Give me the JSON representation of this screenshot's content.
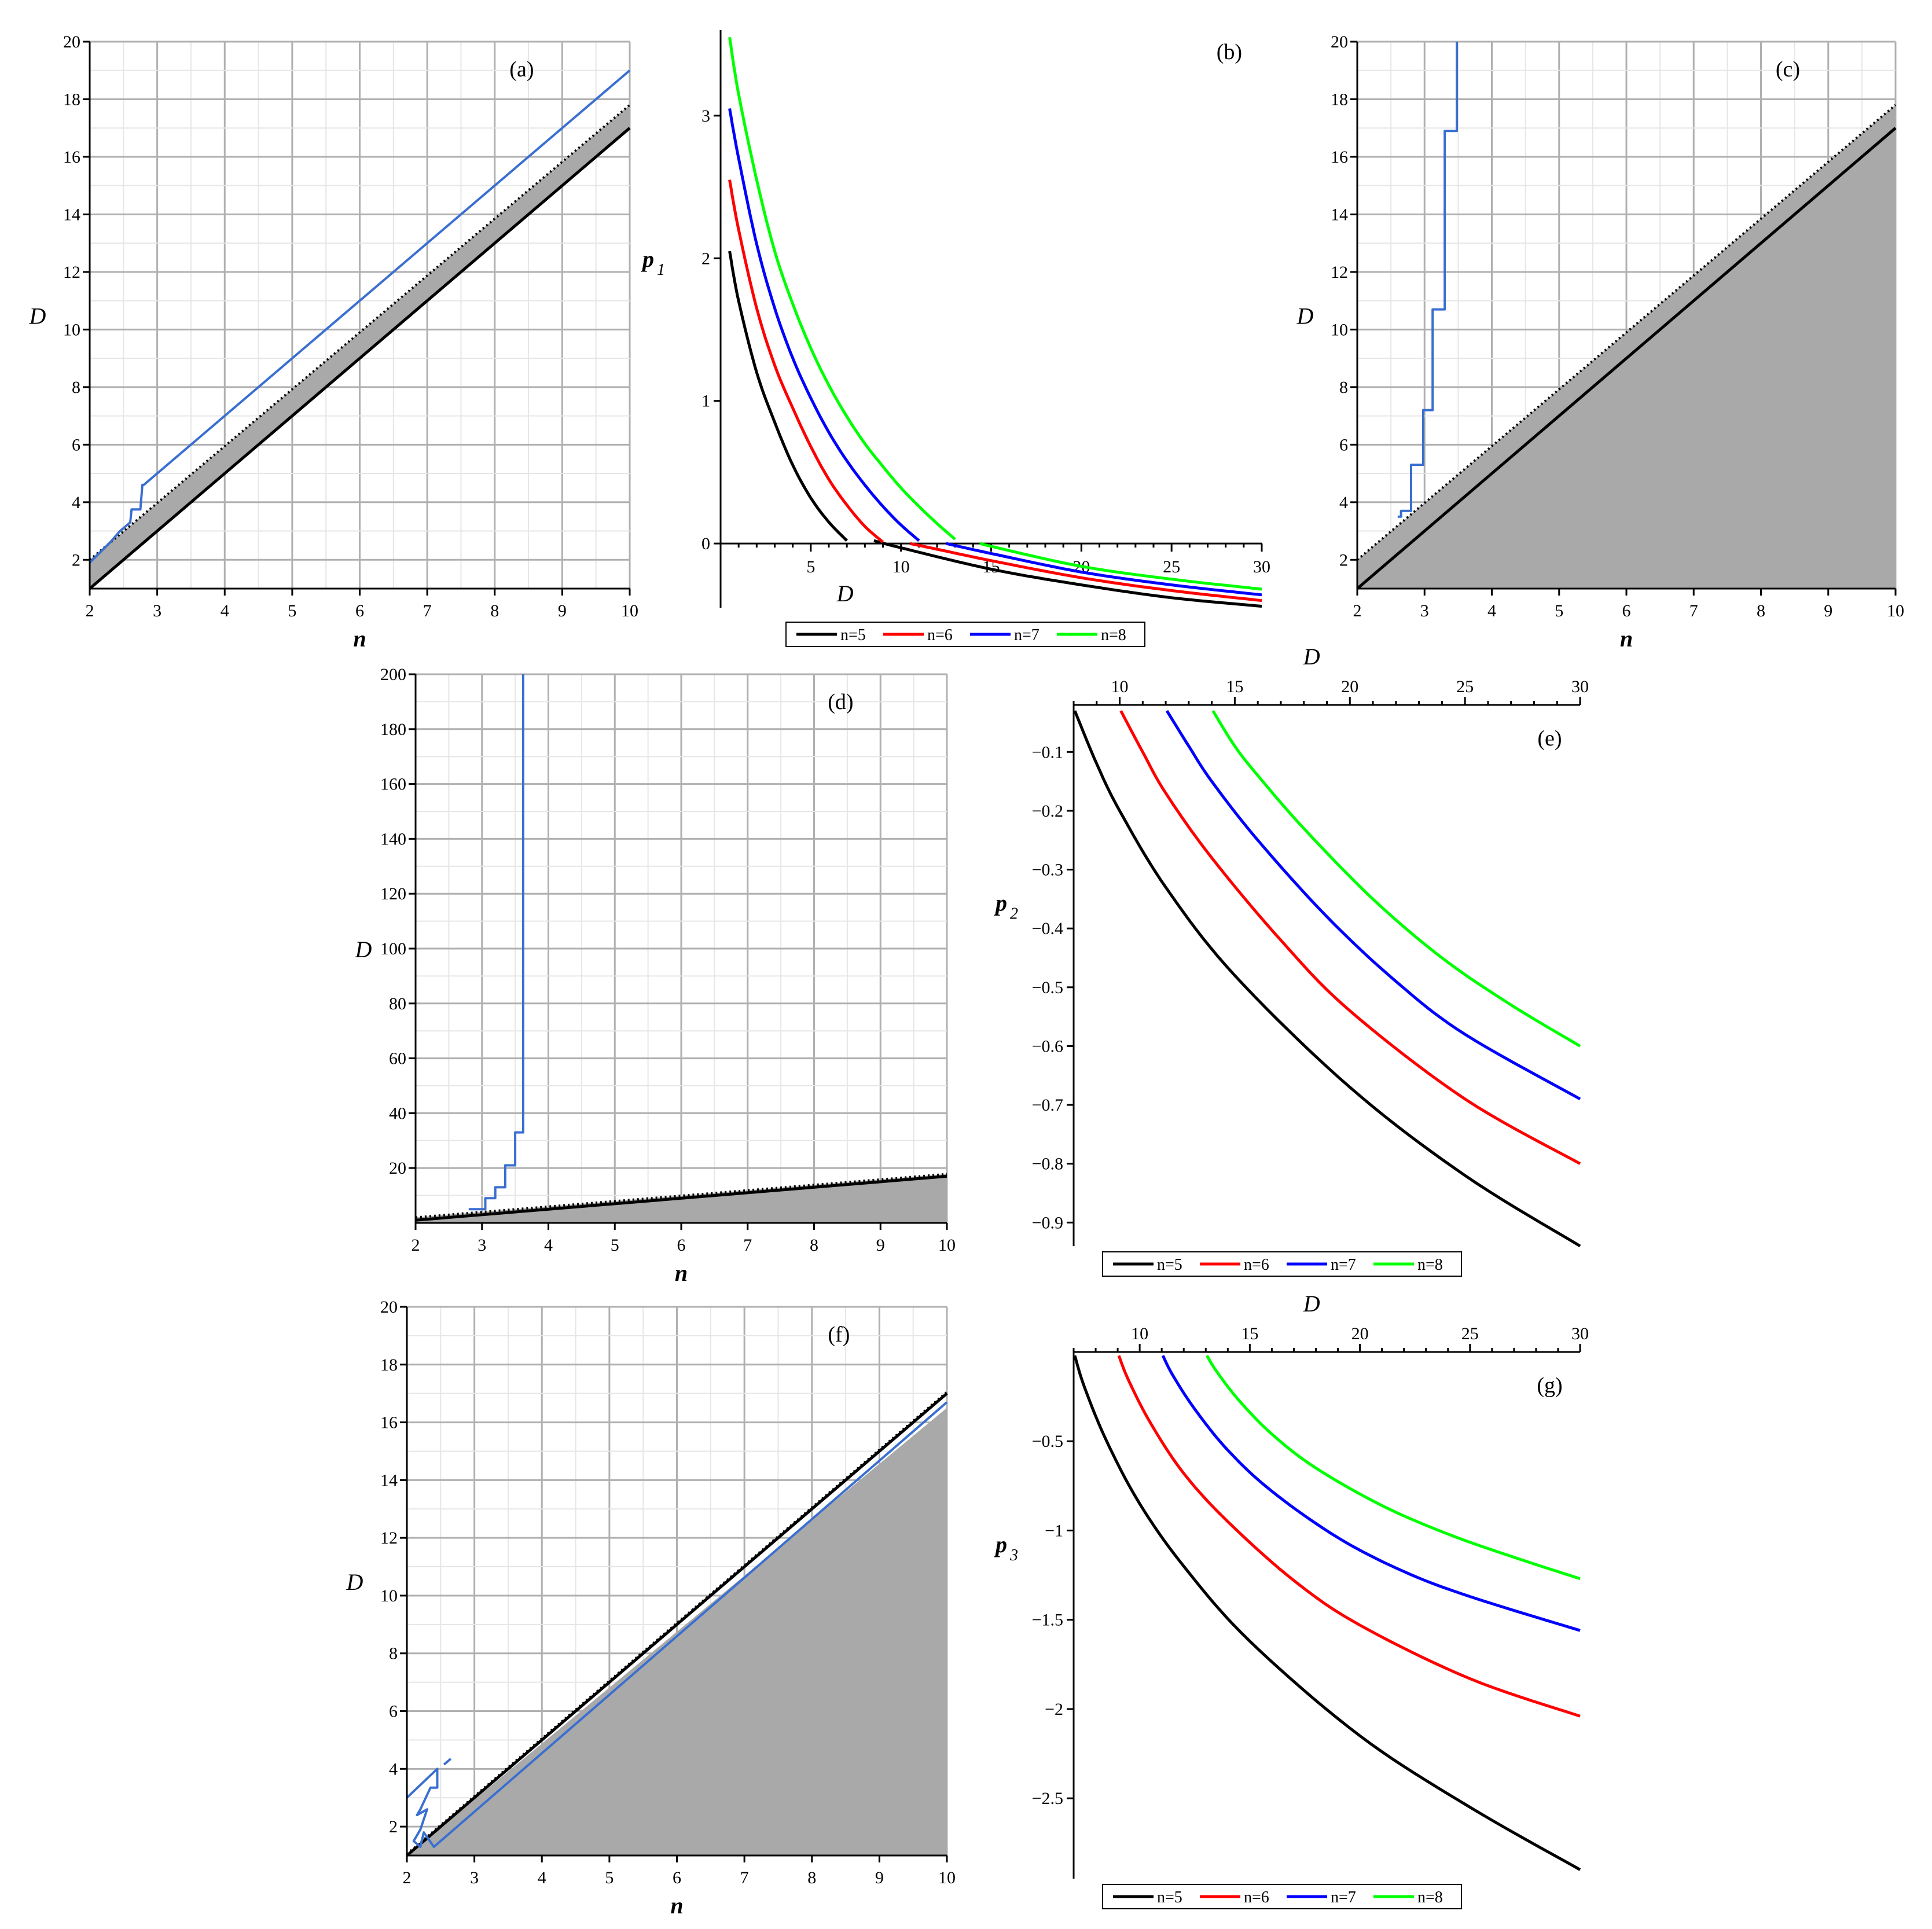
{
  "colors": {
    "black": "#000000",
    "red": "#ff0000",
    "blue": "#0000ff",
    "green": "#00ff00",
    "contour_blue": "#3a6fd0",
    "shade": "#a9a9a9",
    "grid_major": "#b0b0b0",
    "grid_minor": "#e6e6e6"
  },
  "chart_data": [
    {
      "id": "a",
      "type": "region",
      "panel_label": "(a)",
      "xlabel": "n",
      "ylabel": "D",
      "xlim": [
        2,
        10
      ],
      "ylim": [
        1,
        20
      ],
      "xticks": [
        "2",
        "3",
        "4",
        "5",
        "6",
        "7",
        "8",
        "9",
        "10"
      ],
      "yticks": [
        "2",
        "4",
        "6",
        "8",
        "10",
        "12",
        "14",
        "16",
        "18",
        "20"
      ],
      "shaded_region": {
        "lower": {
          "x": [
            2,
            10
          ],
          "y": [
            1,
            17
          ]
        },
        "upper": {
          "x": [
            2,
            10
          ],
          "y": [
            2,
            17.8
          ]
        }
      },
      "solid_line": {
        "x": [
          2,
          10
        ],
        "y": [
          1,
          17
        ]
      },
      "dotted_line": {
        "x": [
          2,
          10
        ],
        "y": [
          2,
          17.8
        ]
      },
      "contour": {
        "x": [
          2,
          2.3,
          2.45,
          2.6,
          2.62,
          2.75,
          2.78,
          2.8,
          10
        ],
        "y": [
          1.9,
          2.6,
          3.0,
          3.3,
          3.75,
          3.75,
          4.6,
          4.6,
          19
        ]
      }
    },
    {
      "id": "b",
      "type": "line",
      "panel_label": "(b)",
      "xlabel": "D",
      "ylabel": "p",
      "ylabel_sub": "1",
      "xlim": [
        0,
        30
      ],
      "ylim": [
        -0.45,
        3.6
      ],
      "xticks": [
        "5",
        "10",
        "15",
        "20",
        "25",
        "30"
      ],
      "yticks": [
        "0",
        "1",
        "2",
        "3"
      ],
      "legend": [
        "n=5",
        "n=6",
        "n=7",
        "n=8"
      ],
      "series": [
        {
          "name": "n=5",
          "branch1": {
            "x": [
              0.5,
              1,
              2,
              3,
              4,
              5,
              6,
              7
            ],
            "y": [
              2.05,
              1.7,
              1.2,
              0.85,
              0.55,
              0.32,
              0.15,
              0.02
            ]
          },
          "branch2": {
            "x": [
              8.5,
              10,
              15,
              20,
              25,
              30
            ],
            "y": [
              0.02,
              -0.03,
              -0.18,
              -0.29,
              -0.38,
              -0.44
            ]
          }
        },
        {
          "name": "n=6",
          "branch1": {
            "x": [
              0.5,
              1,
              2,
              3,
              4,
              5,
              6,
              7,
              8,
              9
            ],
            "y": [
              2.55,
              2.2,
              1.65,
              1.25,
              0.95,
              0.68,
              0.45,
              0.27,
              0.12,
              0.01
            ]
          },
          "branch2": {
            "x": [
              10.5,
              12,
              15,
              20,
              25,
              30
            ],
            "y": [
              0.0,
              -0.04,
              -0.12,
              -0.24,
              -0.33,
              -0.4
            ]
          }
        },
        {
          "name": "n=7",
          "branch1": {
            "x": [
              0.5,
              1,
              2,
              3,
              4,
              5,
              6,
              7,
              8,
              9,
              10,
              11
            ],
            "y": [
              3.05,
              2.7,
              2.1,
              1.65,
              1.3,
              1.02,
              0.78,
              0.58,
              0.41,
              0.26,
              0.13,
              0.02
            ]
          },
          "branch2": {
            "x": [
              12.5,
              15,
              20,
              25,
              30
            ],
            "y": [
              0.0,
              -0.07,
              -0.2,
              -0.29,
              -0.36
            ]
          }
        },
        {
          "name": "n=8",
          "branch1": {
            "x": [
              0.5,
              1,
              2,
              3,
              4,
              5,
              6,
              7,
              8,
              9,
              10,
              11,
              12,
              13
            ],
            "y": [
              3.55,
              3.15,
              2.55,
              2.05,
              1.68,
              1.37,
              1.11,
              0.89,
              0.7,
              0.54,
              0.39,
              0.26,
              0.14,
              0.03
            ]
          },
          "branch2": {
            "x": [
              14.5,
              15,
              20,
              25,
              30
            ],
            "y": [
              0.0,
              -0.02,
              -0.16,
              -0.25,
              -0.32
            ]
          }
        }
      ]
    },
    {
      "id": "c",
      "type": "region",
      "panel_label": "(c)",
      "xlabel": "n",
      "ylabel": "D",
      "xlim": [
        2,
        10
      ],
      "ylim": [
        1,
        20
      ],
      "xticks": [
        "2",
        "3",
        "4",
        "5",
        "6",
        "7",
        "8",
        "9",
        "10"
      ],
      "yticks": [
        "2",
        "4",
        "6",
        "8",
        "10",
        "12",
        "14",
        "16",
        "18",
        "20"
      ],
      "shaded_region": {
        "lower": {
          "x": [
            2,
            10
          ],
          "y": [
            1,
            1
          ]
        },
        "upper": {
          "x": [
            2,
            10
          ],
          "y": [
            2,
            17.8
          ]
        }
      },
      "solid_line": {
        "x": [
          2,
          10
        ],
        "y": [
          1,
          17
        ]
      },
      "dotted_line": {
        "x": [
          2,
          10
        ],
        "y": [
          2,
          17.8
        ]
      },
      "contour": {
        "x": [
          2.6,
          2.65,
          2.65,
          2.8,
          2.8,
          2.98,
          2.98,
          3.12,
          3.12,
          3.3,
          3.3,
          3.48,
          3.48
        ],
        "y": [
          3.5,
          3.5,
          3.7,
          3.7,
          5.3,
          5.3,
          7.2,
          7.2,
          10.7,
          10.7,
          16.9,
          16.9,
          20
        ]
      }
    },
    {
      "id": "d",
      "type": "region",
      "panel_label": "(d)",
      "xlabel": "n",
      "ylabel": "D",
      "xlim": [
        2,
        10
      ],
      "ylim": [
        0,
        200
      ],
      "xticks": [
        "2",
        "3",
        "4",
        "5",
        "6",
        "7",
        "8",
        "9",
        "10"
      ],
      "yticks": [
        "20",
        "40",
        "60",
        "80",
        "100",
        "120",
        "140",
        "160",
        "180",
        "200"
      ],
      "shaded_region": {
        "lower": {
          "x": [
            2,
            10
          ],
          "y": [
            0,
            0
          ]
        },
        "upper": {
          "x": [
            2,
            10
          ],
          "y": [
            2,
            17.8
          ]
        }
      },
      "solid_line": {
        "x": [
          2,
          10
        ],
        "y": [
          1,
          17
        ]
      },
      "dotted_line": {
        "x": [
          2,
          10
        ],
        "y": [
          2,
          17.8
        ]
      },
      "contour": {
        "x": [
          2.8,
          3.05,
          3.05,
          3.2,
          3.2,
          3.35,
          3.35,
          3.5,
          3.5,
          3.62,
          3.62
        ],
        "y": [
          5,
          5,
          9,
          9,
          13,
          13,
          21,
          21,
          33,
          33,
          200
        ]
      }
    },
    {
      "id": "e",
      "type": "line",
      "panel_label": "(e)",
      "xlabel": "D",
      "ylabel": "p",
      "ylabel_sub": "2",
      "xlim": [
        8,
        30
      ],
      "ylim": [
        -0.94,
        -0.02
      ],
      "xaxis_position": "top",
      "xticks": [
        "10",
        "15",
        "20",
        "25",
        "30"
      ],
      "yticks": [
        "-0.1",
        "-0.2",
        "-0.3",
        "-0.4",
        "-0.5",
        "-0.6",
        "-0.7",
        "-0.8",
        "-0.9"
      ],
      "legend": [
        "n=5",
        "n=6",
        "n=7",
        "n=8"
      ],
      "series": [
        {
          "name": "n=5",
          "x": [
            8.05,
            9,
            10,
            12,
            15,
            20,
            25,
            30
          ],
          "y": [
            -0.03,
            -0.12,
            -0.2,
            -0.33,
            -0.48,
            -0.67,
            -0.82,
            -0.94
          ]
        },
        {
          "name": "n=6",
          "x": [
            10.05,
            11,
            12,
            14,
            17,
            20,
            25,
            30
          ],
          "y": [
            -0.03,
            -0.1,
            -0.17,
            -0.28,
            -0.42,
            -0.54,
            -0.69,
            -0.8
          ]
        },
        {
          "name": "n=7",
          "x": [
            12.05,
            13,
            14,
            16,
            19,
            22,
            25,
            30
          ],
          "y": [
            -0.03,
            -0.09,
            -0.15,
            -0.25,
            -0.38,
            -0.49,
            -0.58,
            -0.69
          ]
        },
        {
          "name": "n=8",
          "x": [
            14.05,
            15,
            16,
            18,
            21,
            24,
            27,
            30
          ],
          "y": [
            -0.03,
            -0.09,
            -0.14,
            -0.23,
            -0.35,
            -0.45,
            -0.53,
            -0.6
          ]
        }
      ]
    },
    {
      "id": "f",
      "type": "region",
      "panel_label": "(f)",
      "xlabel": "n",
      "ylabel": "D",
      "xlim": [
        2,
        10
      ],
      "ylim": [
        1,
        20
      ],
      "xticks": [
        "2",
        "3",
        "4",
        "5",
        "6",
        "7",
        "8",
        "9",
        "10"
      ],
      "yticks": [
        "2",
        "4",
        "6",
        "8",
        "10",
        "12",
        "14",
        "16",
        "18",
        "20"
      ],
      "shaded_region": {
        "lower": {
          "x": [
            2,
            10
          ],
          "y": [
            1,
            1
          ]
        },
        "upper": {
          "x": [
            2,
            10
          ],
          "y": [
            1,
            16.5
          ]
        }
      },
      "solid_line": {
        "x": [
          2,
          10
        ],
        "y": [
          1,
          17
        ]
      },
      "dotted_line": {
        "x": [
          2,
          10
        ],
        "y": [
          1.05,
          17.05
        ]
      },
      "contour": {
        "x": [
          2,
          2.45,
          2.45,
          2.35,
          2.2,
          2.15,
          2.3,
          2.2,
          2.1,
          2.2,
          2.25,
          2.4,
          2.45,
          10
        ],
        "y": [
          3,
          4,
          3.35,
          3.35,
          2.6,
          2.4,
          2.6,
          1.9,
          1.5,
          1.3,
          1.8,
          1.3,
          1.4,
          16.7
        ]
      },
      "contour_extra": {
        "x": [
          2.55,
          2.65
        ],
        "y": [
          4.15,
          4.35
        ]
      }
    },
    {
      "id": "g",
      "type": "line",
      "panel_label": "(g)",
      "xlabel": "D",
      "ylabel": "p",
      "ylabel_sub": "3",
      "xlim": [
        7,
        30
      ],
      "ylim": [
        -2.95,
        0
      ],
      "xaxis_position": "top",
      "xticks": [
        "10",
        "15",
        "20",
        "25",
        "30"
      ],
      "yticks": [
        "-0.5",
        "-1",
        "-1.5",
        "-2",
        "-2.5"
      ],
      "legend": [
        "n=5",
        "n=6",
        "n=7",
        "n=8"
      ],
      "series": [
        {
          "name": "n=5",
          "x": [
            7.05,
            7.5,
            8.5,
            10,
            12,
            15,
            20,
            25,
            30
          ],
          "y": [
            -0.02,
            -0.2,
            -0.5,
            -0.85,
            -1.2,
            -1.62,
            -2.15,
            -2.55,
            -2.9
          ]
        },
        {
          "name": "n=6",
          "x": [
            9.05,
            9.5,
            10.5,
            12,
            14,
            17,
            20,
            25,
            30
          ],
          "y": [
            -0.02,
            -0.16,
            -0.4,
            -0.68,
            -0.95,
            -1.28,
            -1.53,
            -1.83,
            -2.04
          ]
        },
        {
          "name": "n=7",
          "x": [
            11.05,
            11.5,
            12.5,
            14,
            16,
            19,
            22,
            25,
            30
          ],
          "y": [
            -0.02,
            -0.13,
            -0.32,
            -0.55,
            -0.78,
            -1.04,
            -1.23,
            -1.37,
            -1.56
          ]
        },
        {
          "name": "n=8",
          "x": [
            13.05,
            13.5,
            14.5,
            16,
            18,
            21,
            24,
            27,
            30
          ],
          "y": [
            -0.02,
            -0.11,
            -0.27,
            -0.46,
            -0.65,
            -0.86,
            -1.02,
            -1.15,
            -1.27
          ]
        }
      ]
    }
  ]
}
